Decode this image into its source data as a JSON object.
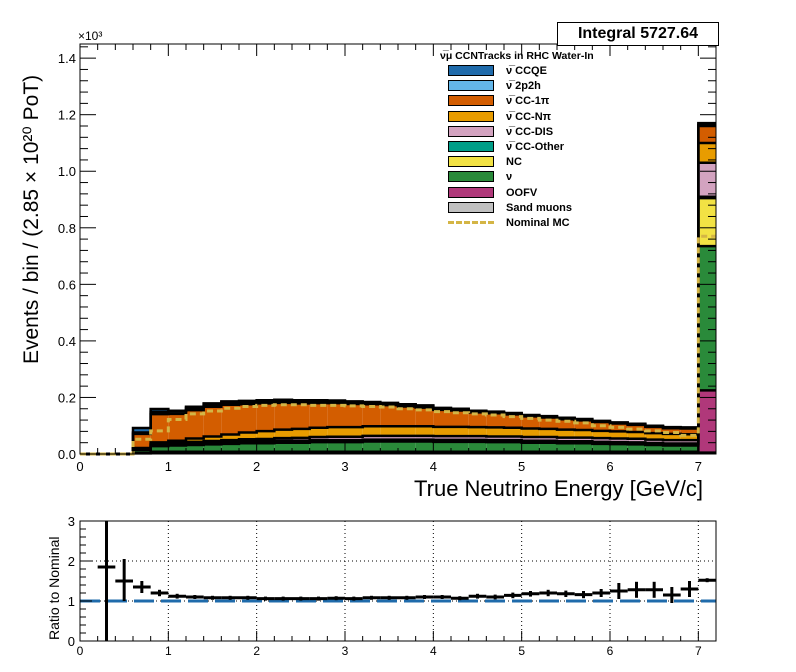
{
  "integral_label": "Integral 5727.64",
  "legend": {
    "title": "ν̅μ CCNTracks in RHC Water-In",
    "entries": [
      {
        "label": "ν̅ CCQE",
        "color": "#1f6bab"
      },
      {
        "label": "ν̅ 2p2h",
        "color": "#63b6e9"
      },
      {
        "label": "ν̅ CC-1π",
        "color": "#d35d00"
      },
      {
        "label": "ν̅ CC-Nπ",
        "color": "#e89c00"
      },
      {
        "label": "ν̅ CC-DIS",
        "color": "#d3a3c0"
      },
      {
        "label": "ν̅ CC-Other",
        "color": "#009e88"
      },
      {
        "label": "NC",
        "color": "#f2e244"
      },
      {
        "label": "ν",
        "color": "#2a8a3a"
      },
      {
        "label": "OOFV",
        "color": "#b0387a"
      },
      {
        "label": "Sand muons",
        "color": "#c0c0c0"
      },
      {
        "label": "Nominal MC",
        "color": "#d4b545",
        "style": "dashed"
      }
    ]
  },
  "chart_data": [
    {
      "type": "bar",
      "subtype": "stacked-histogram",
      "xlabel": "True Neutrino Energy [GeV/c]",
      "ylabel": "Events / bin / (2.85 × 10²⁰ PoT)",
      "y_multiplier_label": "×10³",
      "xlim": [
        0,
        7.2
      ],
      "ylim": [
        0,
        1.45
      ],
      "xticks": [
        0,
        1,
        2,
        3,
        4,
        5,
        6,
        7
      ],
      "yticks": [
        0,
        0.2,
        0.4,
        0.6,
        0.8,
        1.0,
        1.2,
        1.4
      ],
      "ytick_labels": [
        "0.0",
        "0.2",
        "0.4",
        "0.6",
        "0.8",
        "1.0",
        "1.2",
        "1.4"
      ],
      "bin_edges": [
        0,
        0.2,
        0.4,
        0.6,
        0.8,
        1.0,
        1.2,
        1.4,
        1.6,
        1.8,
        2.0,
        2.2,
        2.4,
        2.6,
        2.8,
        3.0,
        3.2,
        3.4,
        3.6,
        3.8,
        4.0,
        4.2,
        4.4,
        4.6,
        4.8,
        5.0,
        5.2,
        5.4,
        5.6,
        5.8,
        6.0,
        6.2,
        6.4,
        6.6,
        6.8,
        7.0,
        7.2
      ],
      "series": [
        {
          "name": "Sand muons",
          "color": "#c0c0c0",
          "values": [
            0,
            0,
            0,
            0.002,
            0.003,
            0.003,
            0.003,
            0.003,
            0.003,
            0.003,
            0.003,
            0.003,
            0.003,
            0.003,
            0.003,
            0.003,
            0.003,
            0.003,
            0.003,
            0.003,
            0.003,
            0.003,
            0.003,
            0.003,
            0.003,
            0.003,
            0.003,
            0.003,
            0.003,
            0.003,
            0.003,
            0.003,
            0.003,
            0.003,
            0.003,
            0.005
          ]
        },
        {
          "name": "OOFV",
          "color": "#b0387a",
          "values": [
            0,
            0,
            0,
            0.003,
            0.005,
            0.005,
            0.005,
            0.005,
            0.005,
            0.005,
            0.005,
            0.005,
            0.005,
            0.005,
            0.005,
            0.005,
            0.005,
            0.005,
            0.005,
            0.005,
            0.005,
            0.005,
            0.005,
            0.005,
            0.005,
            0.005,
            0.005,
            0.005,
            0.005,
            0.005,
            0.005,
            0.005,
            0.005,
            0.005,
            0.005,
            0.22
          ]
        },
        {
          "name": "ν",
          "color": "#2a8a3a",
          "values": [
            0,
            0,
            0,
            0.01,
            0.02,
            0.022,
            0.024,
            0.026,
            0.028,
            0.03,
            0.03,
            0.032,
            0.032,
            0.034,
            0.034,
            0.034,
            0.036,
            0.036,
            0.036,
            0.036,
            0.035,
            0.035,
            0.035,
            0.034,
            0.034,
            0.032,
            0.032,
            0.03,
            0.03,
            0.028,
            0.027,
            0.026,
            0.024,
            0.022,
            0.022,
            0.51
          ]
        },
        {
          "name": "NC",
          "color": "#f2e244",
          "values": [
            0,
            0,
            0,
            0.002,
            0.004,
            0.004,
            0.005,
            0.005,
            0.005,
            0.005,
            0.005,
            0.005,
            0.005,
            0.005,
            0.005,
            0.005,
            0.005,
            0.005,
            0.005,
            0.005,
            0.005,
            0.005,
            0.005,
            0.005,
            0.005,
            0.005,
            0.005,
            0.005,
            0.005,
            0.005,
            0.005,
            0.005,
            0.005,
            0.005,
            0.005,
            0.17
          ]
        },
        {
          "name": "ν̅ CC-Other",
          "color": "#009e88",
          "values": [
            0,
            0,
            0,
            0.001,
            0.002,
            0.002,
            0.002,
            0.002,
            0.002,
            0.002,
            0.002,
            0.002,
            0.002,
            0.002,
            0.002,
            0.002,
            0.002,
            0.002,
            0.002,
            0.002,
            0.002,
            0.002,
            0.002,
            0.002,
            0.002,
            0.002,
            0.002,
            0.002,
            0.002,
            0.002,
            0.002,
            0.002,
            0.002,
            0.002,
            0.002,
            0.005
          ]
        },
        {
          "name": "ν̅ CC-DIS",
          "color": "#d3a3c0",
          "values": [
            0,
            0,
            0,
            0.001,
            0.002,
            0.003,
            0.004,
            0.005,
            0.006,
            0.007,
            0.008,
            0.009,
            0.01,
            0.011,
            0.012,
            0.012,
            0.013,
            0.013,
            0.013,
            0.013,
            0.013,
            0.013,
            0.013,
            0.013,
            0.013,
            0.013,
            0.013,
            0.013,
            0.013,
            0.013,
            0.013,
            0.013,
            0.012,
            0.012,
            0.012,
            0.12
          ]
        },
        {
          "name": "ν̅ CC-Nπ",
          "color": "#e89c00",
          "values": [
            0,
            0,
            0,
            0.002,
            0.005,
            0.008,
            0.012,
            0.016,
            0.02,
            0.024,
            0.028,
            0.03,
            0.032,
            0.033,
            0.034,
            0.034,
            0.034,
            0.034,
            0.034,
            0.034,
            0.033,
            0.033,
            0.032,
            0.032,
            0.031,
            0.03,
            0.029,
            0.028,
            0.027,
            0.026,
            0.025,
            0.024,
            0.023,
            0.022,
            0.021,
            0.07
          ]
        },
        {
          "name": "ν̅ CC-1π",
          "color": "#d35d00",
          "values": [
            0,
            0,
            0,
            0.05,
            0.1,
            0.095,
            0.1,
            0.105,
            0.105,
            0.1,
            0.098,
            0.095,
            0.09,
            0.087,
            0.085,
            0.082,
            0.078,
            0.075,
            0.07,
            0.066,
            0.06,
            0.058,
            0.052,
            0.05,
            0.047,
            0.043,
            0.04,
            0.037,
            0.034,
            0.031,
            0.028,
            0.025,
            0.022,
            0.02,
            0.02,
            0.06
          ]
        },
        {
          "name": "ν̅ 2p2h",
          "color": "#63b6e9",
          "values": [
            0,
            0,
            0,
            0.005,
            0.008,
            0.008,
            0.008,
            0.008,
            0.008,
            0.008,
            0.007,
            0.007,
            0.007,
            0.006,
            0.006,
            0.006,
            0.005,
            0.005,
            0.005,
            0.005,
            0.004,
            0.004,
            0.004,
            0.004,
            0.003,
            0.003,
            0.003,
            0.003,
            0.003,
            0.002,
            0.002,
            0.002,
            0.002,
            0.002,
            0.002,
            0.004
          ]
        },
        {
          "name": "ν̅ CCQE",
          "color": "#1f6bab",
          "values": [
            0,
            0,
            0,
            0.016,
            0.01,
            0.003,
            0.004,
            0.004,
            0.004,
            0.004,
            0.004,
            0.004,
            0.004,
            0.004,
            0.003,
            0.003,
            0.003,
            0.003,
            0.003,
            0.003,
            0.003,
            0.002,
            0.002,
            0.002,
            0.002,
            0.002,
            0.002,
            0.002,
            0.002,
            0.002,
            0.002,
            0.002,
            0.002,
            0.002,
            0.002,
            0.006
          ]
        }
      ],
      "nominal_mc": {
        "name": "Nominal MC",
        "color": "#d4b545",
        "values": [
          0,
          0,
          0,
          0.052,
          0.082,
          0.122,
          0.142,
          0.152,
          0.162,
          0.168,
          0.172,
          0.174,
          0.174,
          0.172,
          0.172,
          0.17,
          0.168,
          0.166,
          0.16,
          0.156,
          0.15,
          0.146,
          0.142,
          0.138,
          0.132,
          0.126,
          0.12,
          0.116,
          0.11,
          0.1,
          0.094,
          0.088,
          0.082,
          0.076,
          0.066,
          0.77
        ]
      }
    },
    {
      "type": "scatter",
      "subtype": "ratio-with-errors",
      "ylabel": "Ratio to Nominal",
      "xlim": [
        0,
        7.2
      ],
      "ylim": [
        0,
        3
      ],
      "xticks": [
        0,
        1,
        2,
        3,
        4,
        5,
        6,
        7
      ],
      "yticks": [
        0,
        1,
        2,
        3
      ],
      "reference_line": 1,
      "points": [
        {
          "x": 0.3,
          "y": 1.85,
          "xerr": 0.1,
          "yerr_low": 1.85,
          "yerr_high": 1.2
        },
        {
          "x": 0.5,
          "y": 1.5,
          "xerr": 0.1,
          "yerr_low": 0.5,
          "yerr_high": 0.55
        },
        {
          "x": 0.7,
          "y": 1.35,
          "xerr": 0.1,
          "yerr_low": 0.15,
          "yerr_high": 0.15
        },
        {
          "x": 0.9,
          "y": 1.2,
          "xerr": 0.1,
          "yerr_low": 0.08,
          "yerr_high": 0.08
        },
        {
          "x": 1.1,
          "y": 1.12,
          "xerr": 0.1,
          "yerr_low": 0.06,
          "yerr_high": 0.06
        },
        {
          "x": 1.3,
          "y": 1.1,
          "xerr": 0.1,
          "yerr_low": 0.05,
          "yerr_high": 0.05
        },
        {
          "x": 1.5,
          "y": 1.08,
          "xerr": 0.1,
          "yerr_low": 0.05,
          "yerr_high": 0.05
        },
        {
          "x": 1.7,
          "y": 1.08,
          "xerr": 0.1,
          "yerr_low": 0.05,
          "yerr_high": 0.05
        },
        {
          "x": 1.9,
          "y": 1.08,
          "xerr": 0.1,
          "yerr_low": 0.05,
          "yerr_high": 0.05
        },
        {
          "x": 2.1,
          "y": 1.06,
          "xerr": 0.1,
          "yerr_low": 0.05,
          "yerr_high": 0.05
        },
        {
          "x": 2.3,
          "y": 1.06,
          "xerr": 0.1,
          "yerr_low": 0.05,
          "yerr_high": 0.05
        },
        {
          "x": 2.5,
          "y": 1.06,
          "xerr": 0.1,
          "yerr_low": 0.05,
          "yerr_high": 0.05
        },
        {
          "x": 2.7,
          "y": 1.06,
          "xerr": 0.1,
          "yerr_low": 0.05,
          "yerr_high": 0.05
        },
        {
          "x": 2.9,
          "y": 1.07,
          "xerr": 0.1,
          "yerr_low": 0.05,
          "yerr_high": 0.05
        },
        {
          "x": 3.1,
          "y": 1.06,
          "xerr": 0.1,
          "yerr_low": 0.05,
          "yerr_high": 0.05
        },
        {
          "x": 3.3,
          "y": 1.08,
          "xerr": 0.1,
          "yerr_low": 0.05,
          "yerr_high": 0.05
        },
        {
          "x": 3.5,
          "y": 1.08,
          "xerr": 0.1,
          "yerr_low": 0.05,
          "yerr_high": 0.05
        },
        {
          "x": 3.7,
          "y": 1.08,
          "xerr": 0.1,
          "yerr_low": 0.05,
          "yerr_high": 0.05
        },
        {
          "x": 3.9,
          "y": 1.1,
          "xerr": 0.1,
          "yerr_low": 0.05,
          "yerr_high": 0.05
        },
        {
          "x": 4.1,
          "y": 1.1,
          "xerr": 0.1,
          "yerr_low": 0.05,
          "yerr_high": 0.05
        },
        {
          "x": 4.3,
          "y": 1.07,
          "xerr": 0.1,
          "yerr_low": 0.05,
          "yerr_high": 0.05
        },
        {
          "x": 4.5,
          "y": 1.12,
          "xerr": 0.1,
          "yerr_low": 0.06,
          "yerr_high": 0.06
        },
        {
          "x": 4.7,
          "y": 1.1,
          "xerr": 0.1,
          "yerr_low": 0.06,
          "yerr_high": 0.06
        },
        {
          "x": 4.9,
          "y": 1.14,
          "xerr": 0.1,
          "yerr_low": 0.07,
          "yerr_high": 0.07
        },
        {
          "x": 5.1,
          "y": 1.18,
          "xerr": 0.1,
          "yerr_low": 0.07,
          "yerr_high": 0.07
        },
        {
          "x": 5.3,
          "y": 1.2,
          "xerr": 0.1,
          "yerr_low": 0.08,
          "yerr_high": 0.08
        },
        {
          "x": 5.5,
          "y": 1.18,
          "xerr": 0.1,
          "yerr_low": 0.08,
          "yerr_high": 0.08
        },
        {
          "x": 5.7,
          "y": 1.16,
          "xerr": 0.1,
          "yerr_low": 0.09,
          "yerr_high": 0.09
        },
        {
          "x": 5.9,
          "y": 1.2,
          "xerr": 0.1,
          "yerr_low": 0.1,
          "yerr_high": 0.1
        },
        {
          "x": 6.1,
          "y": 1.25,
          "xerr": 0.1,
          "yerr_low": 0.2,
          "yerr_high": 0.2
        },
        {
          "x": 6.3,
          "y": 1.28,
          "xerr": 0.1,
          "yerr_low": 0.2,
          "yerr_high": 0.2
        },
        {
          "x": 6.5,
          "y": 1.28,
          "xerr": 0.1,
          "yerr_low": 0.2,
          "yerr_high": 0.2
        },
        {
          "x": 6.7,
          "y": 1.15,
          "xerr": 0.1,
          "yerr_low": 0.2,
          "yerr_high": 0.2
        },
        {
          "x": 6.9,
          "y": 1.3,
          "xerr": 0.1,
          "yerr_low": 0.2,
          "yerr_high": 0.2
        },
        {
          "x": 7.1,
          "y": 1.52,
          "xerr": 0.1,
          "yerr_low": 0.05,
          "yerr_high": 0.05
        }
      ]
    }
  ]
}
